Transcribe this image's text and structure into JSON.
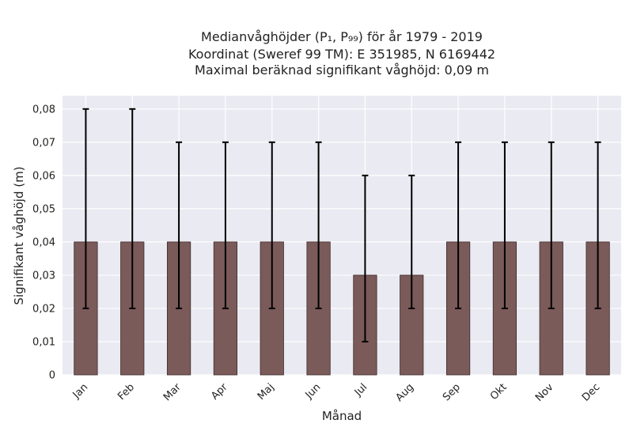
{
  "chart_data": {
    "type": "bar",
    "title_lines": [
      "Medianvåghöjder (P₁, P₉₉) för år 1979 - 2019",
      "Koordinat (Sweref 99 TM): E 351985, N 6169442",
      "Maximal beräknad signifikant våghöjd: 0,09 m"
    ],
    "xlabel": "Månad",
    "ylabel": "Signifikant våghöjd (m)",
    "categories": [
      "Jan",
      "Feb",
      "Mar",
      "Apr",
      "Maj",
      "Jun",
      "Jul",
      "Aug",
      "Sep",
      "Okt",
      "Nov",
      "Dec"
    ],
    "values": [
      0.04,
      0.04,
      0.04,
      0.04,
      0.04,
      0.04,
      0.03,
      0.03,
      0.04,
      0.04,
      0.04,
      0.04
    ],
    "p1": [
      0.02,
      0.02,
      0.02,
      0.02,
      0.02,
      0.02,
      0.01,
      0.02,
      0.02,
      0.02,
      0.02,
      0.02
    ],
    "p99": [
      0.08,
      0.08,
      0.07,
      0.07,
      0.07,
      0.07,
      0.06,
      0.06,
      0.07,
      0.07,
      0.07,
      0.07
    ],
    "ylim": [
      0,
      0.084
    ],
    "yticks": [
      0,
      0.01,
      0.02,
      0.03,
      0.04,
      0.05,
      0.06,
      0.07,
      0.08
    ],
    "ytick_labels": [
      "0",
      "0,01",
      "0,02",
      "0,03",
      "0,04",
      "0,05",
      "0,06",
      "0,07",
      "0,08"
    ],
    "grid": true,
    "colors": {
      "bar": "#7b5a5a",
      "plot_background": "#eaeaf2",
      "error_bar": "#000000"
    }
  }
}
